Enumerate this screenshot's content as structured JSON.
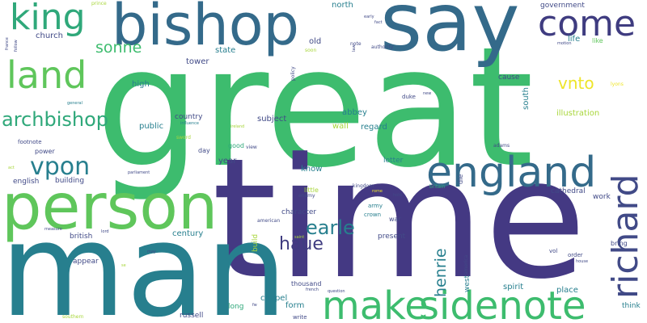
{
  "palette": {
    "indigo": "#3f3c80",
    "navy": "#414a87",
    "blue": "#346a8a",
    "teal": "#277f8e",
    "green": "#2fa87a",
    "brightgreen": "#3dbc6e",
    "lime": "#5fc65b",
    "yellowgreen": "#a8d63b",
    "yellow": "#eee52a",
    "background": "#ffffff"
  },
  "words": {
    "great": "great",
    "time": "time",
    "man": "man",
    "person": "person",
    "say": "say",
    "bishop": "bishop",
    "sidenote": "sidenote",
    "make": "make",
    "england": "england",
    "richard": "richard",
    "king": "king",
    "land": "land",
    "come": "come",
    "archbishop": "archbishop",
    "vpon": "vpon",
    "earle": "earle",
    "haue": "haue",
    "henrie": "henrie",
    "vnto": "vnto",
    "sonne": "sonne",
    "church": "church",
    "north": "north",
    "government": "government",
    "life": "life",
    "like": "like",
    "state": "state",
    "tower": "tower",
    "high": "high",
    "country": "country",
    "subject": "subject",
    "abbey": "abbey",
    "regard": "regard",
    "wall": "wall",
    "cause": "cause",
    "south": "south",
    "illustration": "illustration",
    "public": "public",
    "influence": "influence",
    "sword": "sword",
    "good": "good",
    "view": "view",
    "day": "day",
    "year": "year",
    "letter": "letter",
    "know": "know",
    "kingdom": "kingdom",
    "english": "english",
    "building": "building",
    "power": "power",
    "footnote": "footnote",
    "little": "little",
    "enemy": "enemy",
    "cathedral": "cathedral",
    "work": "work",
    "character": "character",
    "army": "army",
    "crown": "crown",
    "war": "war",
    "american": "american",
    "present": "present",
    "british": "british",
    "century": "century",
    "appear": "appear",
    "build": "build",
    "thousand": "thousand",
    "chapel": "chapel",
    "form": "form",
    "spirit": "spirit",
    "place": "place",
    "think": "think",
    "long": "long",
    "russell": "russell",
    "write": "write",
    "southern": "southern",
    "west": "west",
    "america": "america",
    "bring": "bring",
    "vol": "vol",
    "order": "order",
    "house": "house",
    "adams": "adams",
    "lyons": "lyons",
    "die": "die",
    "britain": "britain",
    "hold": "hold",
    "authority": "authority",
    "old": "old",
    "prince": "prince",
    "france": "france",
    "follow": "follow",
    "soon": "soon",
    "policy": "policy",
    "note": "note",
    "early": "early",
    "fact": "fact",
    "law": "law",
    "general": "general",
    "ireland": "ireland",
    "parliament": "parliament",
    "act": "act",
    "measure": "measure",
    "lord": "lord",
    "may": "may",
    "question": "question",
    "french": "french",
    "motion": "motion",
    "new": "new",
    "duke": "duke",
    "fw": "fw",
    "se": "se",
    "saint": "saint",
    "rome": "rome"
  }
}
